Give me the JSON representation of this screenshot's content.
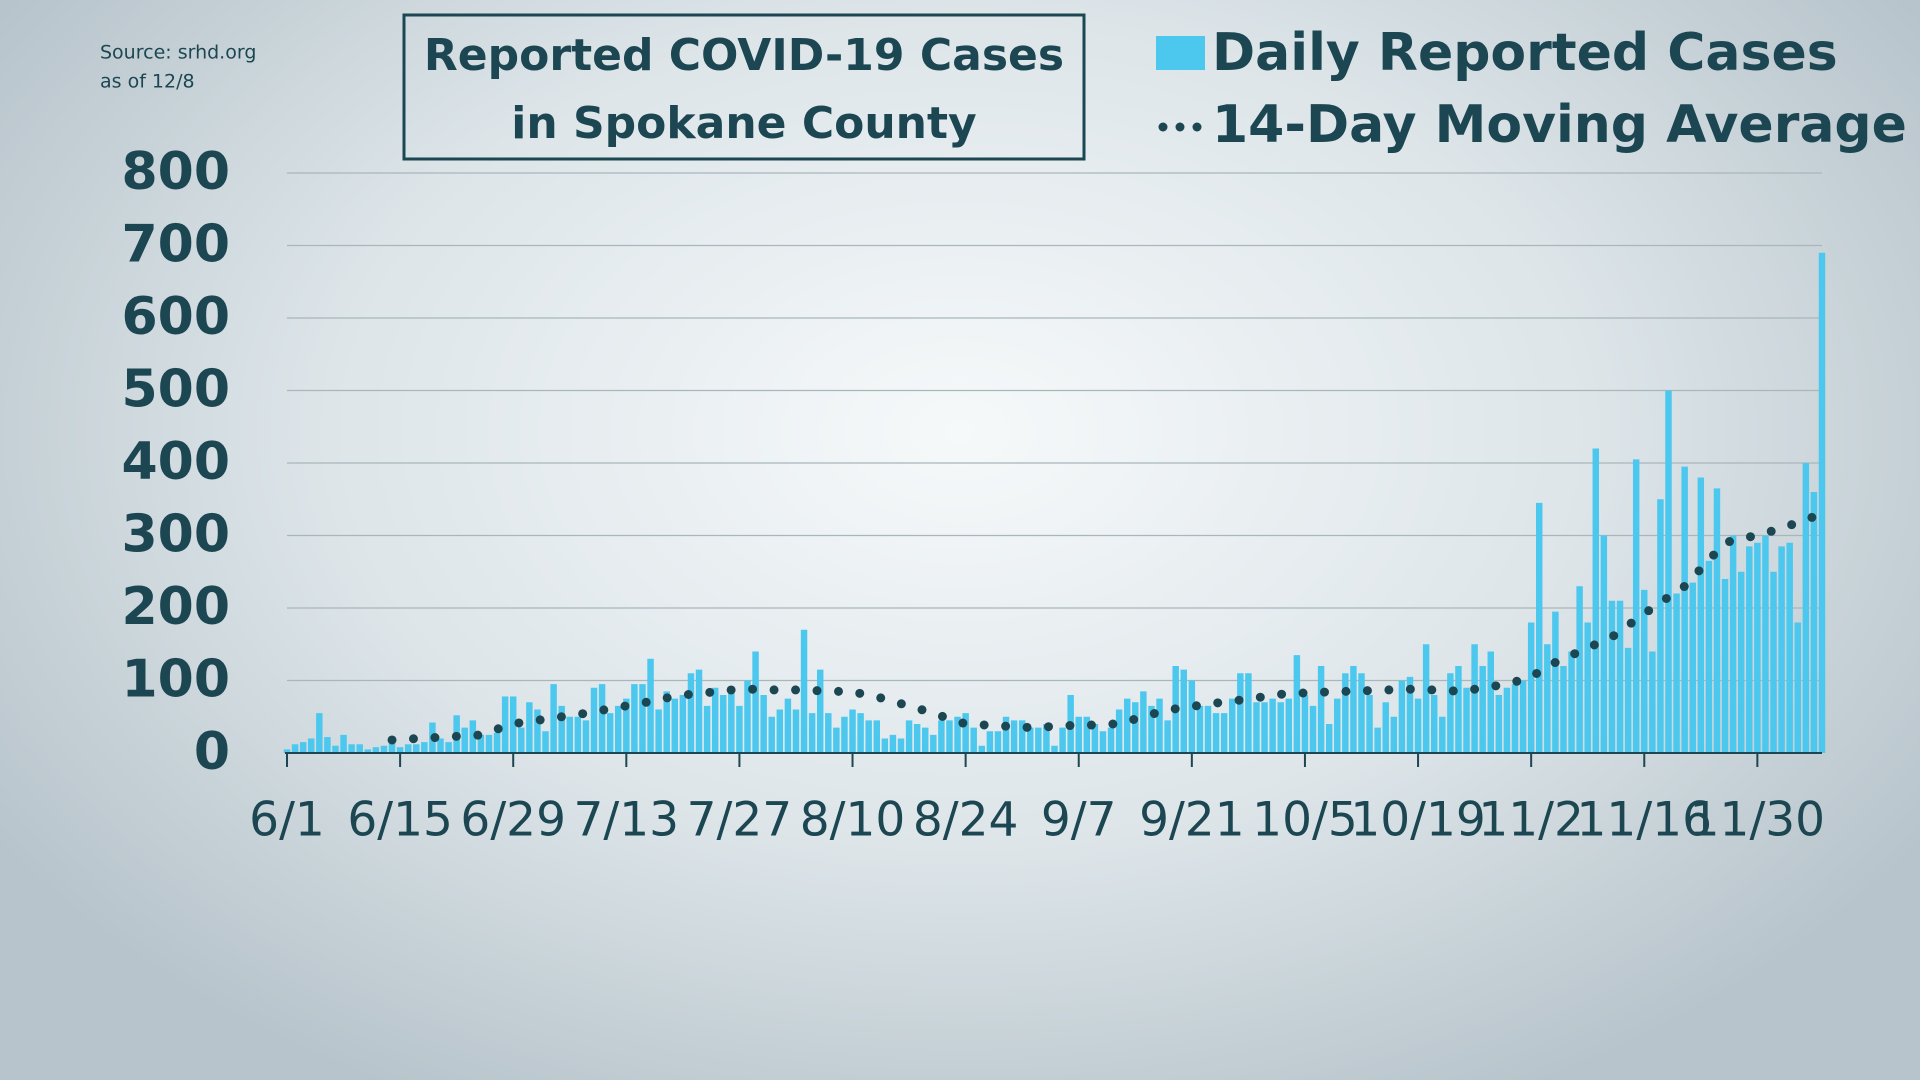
{
  "chart_data": {
    "type": "bar",
    "title_lines": [
      "Reported COVID-19 Cases",
      "in Spokane County"
    ],
    "source_lines": [
      "Source: srhd.org",
      "as of 12/8"
    ],
    "categories": [
      "6/1",
      null,
      null,
      null,
      null,
      null,
      null,
      null,
      null,
      null,
      null,
      null,
      null,
      null,
      "6/15",
      null,
      null,
      null,
      null,
      null,
      null,
      null,
      null,
      null,
      null,
      null,
      null,
      null,
      "6/29",
      null,
      null,
      null,
      null,
      null,
      null,
      null,
      null,
      null,
      null,
      null,
      null,
      null,
      "7/13",
      null,
      null,
      null,
      null,
      null,
      null,
      null,
      null,
      null,
      null,
      null,
      null,
      null,
      "7/27",
      null,
      null,
      null,
      null,
      null,
      null,
      null,
      null,
      null,
      null,
      null,
      null,
      null,
      "8/10",
      null,
      null,
      null,
      null,
      null,
      null,
      null,
      null,
      null,
      null,
      null,
      null,
      null,
      "8/24",
      null,
      null,
      null,
      null,
      null,
      null,
      null,
      null,
      null,
      null,
      null,
      null,
      null,
      "9/7",
      null,
      null,
      null,
      null,
      null,
      null,
      null,
      null,
      null,
      null,
      null,
      null,
      null,
      "9/21",
      null,
      null,
      null,
      null,
      null,
      null,
      null,
      null,
      null,
      null,
      null,
      null,
      null,
      "10/5",
      null,
      null,
      null,
      null,
      null,
      null,
      null,
      null,
      null,
      null,
      null,
      null,
      null,
      "10/19",
      null,
      null,
      null,
      null,
      null,
      null,
      null,
      null,
      null,
      null,
      null,
      null,
      null,
      "11/2",
      null,
      null,
      null,
      null,
      null,
      null,
      null,
      null,
      null,
      null,
      null,
      null,
      null,
      "11/16",
      null,
      null,
      null,
      null,
      null,
      null,
      null,
      null,
      null,
      null,
      null,
      null,
      null,
      "11/30",
      null,
      null,
      null,
      null,
      null,
      null,
      null,
      null
    ],
    "series": [
      {
        "name": "Daily Reported Cases",
        "type": "bar",
        "color": "#4cc8ef",
        "values": [
          5,
          12,
          15,
          20,
          55,
          22,
          10,
          25,
          12,
          12,
          5,
          8,
          10,
          15,
          8,
          12,
          12,
          15,
          42,
          20,
          15,
          52,
          35,
          45,
          25,
          25,
          28,
          78,
          78,
          35,
          70,
          60,
          30,
          95,
          65,
          50,
          50,
          45,
          90,
          95,
          55,
          65,
          75,
          95,
          95,
          130,
          60,
          85,
          75,
          80,
          110,
          115,
          65,
          90,
          80,
          85,
          65,
          100,
          140,
          80,
          50,
          60,
          75,
          60,
          170,
          55,
          115,
          55,
          35,
          50,
          60,
          55,
          45,
          45,
          20,
          25,
          20,
          45,
          40,
          35,
          25,
          45,
          45,
          50,
          55,
          35,
          10,
          30,
          30,
          50,
          45,
          45,
          35,
          35,
          40,
          10,
          35,
          80,
          50,
          50,
          40,
          30,
          35,
          60,
          75,
          70,
          85,
          65,
          75,
          45,
          120,
          115,
          100,
          65,
          65,
          55,
          55,
          75,
          110,
          110,
          70,
          70,
          75,
          70,
          75,
          135,
          80,
          65,
          120,
          40,
          75,
          110,
          120,
          110,
          80,
          35,
          70,
          50,
          100,
          105,
          75,
          150,
          80,
          50,
          110,
          120,
          90,
          150,
          120,
          140,
          80,
          90,
          95,
          100,
          180,
          345,
          150,
          195,
          120,
          140,
          230,
          180,
          420,
          300,
          210,
          210,
          145,
          405,
          225,
          140,
          350,
          500,
          220,
          395,
          235,
          380,
          265,
          365,
          240,
          300,
          250,
          285,
          290,
          300,
          250,
          285,
          290,
          180,
          400,
          360,
          690
        ]
      },
      {
        "name": "14-Day Moving Average",
        "type": "line",
        "color": "#1c4752",
        "values": [
          null,
          null,
          null,
          null,
          null,
          null,
          null,
          null,
          null,
          null,
          null,
          null,
          null,
          18,
          19,
          19,
          20,
          21,
          21,
          22,
          22,
          23,
          24,
          24,
          25,
          29,
          33,
          36,
          40,
          42,
          43,
          45,
          47,
          48,
          50,
          52,
          53,
          55,
          57,
          59,
          61,
          63,
          65,
          67,
          69,
          71,
          74,
          76,
          78,
          80,
          81,
          82,
          83,
          85,
          86,
          87,
          88,
          88,
          88,
          88,
          87,
          87,
          87,
          87,
          86,
          86,
          86,
          86,
          85,
          85,
          85,
          82,
          80,
          77,
          75,
          72,
          68,
          65,
          62,
          58,
          55,
          51,
          47,
          44,
          40,
          39,
          39,
          38,
          38,
          37,
          36,
          36,
          35,
          36,
          36,
          37,
          37,
          38,
          38,
          38,
          39,
          39,
          40,
          40,
          43,
          47,
          50,
          53,
          57,
          60,
          61,
          63,
          64,
          66,
          67,
          69,
          70,
          72,
          73,
          75,
          76,
          78,
          79,
          81,
          82,
          82,
          83,
          83,
          84,
          84,
          85,
          85,
          85,
          86,
          86,
          86,
          87,
          87,
          87,
          88,
          88,
          87,
          87,
          86,
          86,
          85,
          87,
          88,
          90,
          92,
          93,
          95,
          98,
          102,
          105,
          112,
          118,
          125,
          130,
          135,
          140,
          145,
          150,
          155,
          160,
          168,
          176,
          184,
          192,
          200,
          208,
          215,
          223,
          230,
          242,
          254,
          266,
          278,
          290,
          293,
          295,
          298,
          300,
          303,
          307,
          310,
          314,
          318,
          322,
          326,
          330
        ]
      }
    ],
    "ylim": [
      0,
      800
    ],
    "yticks": [
      0,
      100,
      200,
      300,
      400,
      500,
      600,
      700,
      800
    ],
    "grid": true
  }
}
